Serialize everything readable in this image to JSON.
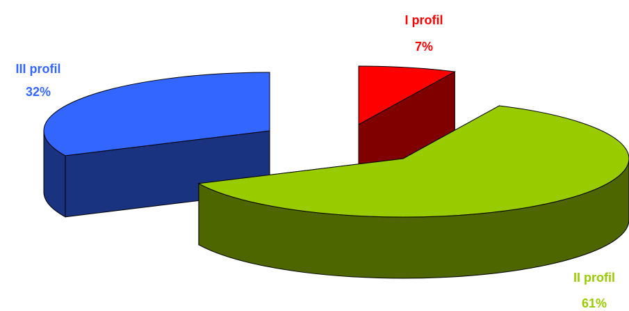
{
  "chart_data": {
    "type": "pie3d",
    "categories": [
      "I profil",
      "II profil",
      "III profil"
    ],
    "values": [
      7,
      61,
      32
    ],
    "value_labels": [
      "7%",
      "61%",
      "32%"
    ],
    "colors": [
      "#ff0000",
      "#99cc00",
      "#3366ff"
    ]
  }
}
